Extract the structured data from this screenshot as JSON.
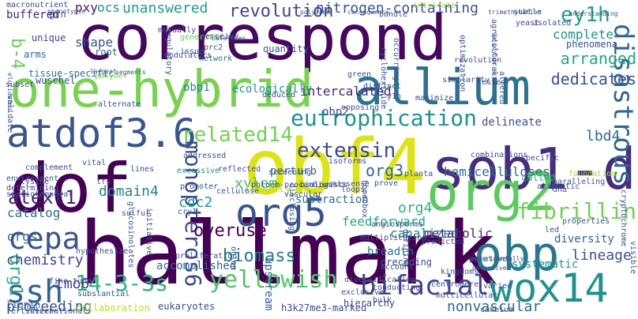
{
  "cloud": {
    "words": [
      {
        "text": "correspond",
        "color": "#46085c"
      },
      {
        "text": "hallmark",
        "color": "#440154"
      },
      {
        "text": "dof",
        "color": "#440154"
      },
      {
        "text": "obf4",
        "color": "#dde318"
      },
      {
        "text": "one-hybrid",
        "color": "#7ad151"
      },
      {
        "text": "allium",
        "color": "#2c728e"
      },
      {
        "text": "sob1-d",
        "color": "#472d7b"
      },
      {
        "text": "org2",
        "color": "#5ec962"
      },
      {
        "text": "obp",
        "color": "#2a788e"
      },
      {
        "text": "atdof3.6",
        "color": "#39568c"
      },
      {
        "text": "org5",
        "color": "#3b528b"
      },
      {
        "text": "wox14",
        "color": "#21918c"
      },
      {
        "text": "ssh",
        "color": "#33638d"
      },
      {
        "text": "cepa",
        "color": "#3b528b"
      },
      {
        "text": "bifacial",
        "color": "#414487"
      },
      {
        "text": "yellowish",
        "color": "#52c569"
      },
      {
        "text": "14-3-3s",
        "color": "#2db27d"
      },
      {
        "text": "disastrous",
        "color": "#31688e"
      },
      {
        "text": "monopteros6",
        "color": "#3e4989"
      },
      {
        "text": "fibrillin",
        "color": "#73d056"
      },
      {
        "text": "eutrophication",
        "color": "#21918c"
      },
      {
        "text": "related14",
        "color": "#73d056"
      },
      {
        "text": "revolution",
        "color": "#414487"
      },
      {
        "text": "unanswered",
        "color": "#1f9e89"
      },
      {
        "text": "nitrogen-containing",
        "color": "#3b528b"
      },
      {
        "text": "ey1h",
        "color": "#1fa088"
      },
      {
        "text": "atext1",
        "color": "#481f70"
      },
      {
        "text": "extensin",
        "color": "#3e4989"
      },
      {
        "text": "overuse",
        "color": "#440154"
      },
      {
        "text": "biomass",
        "color": "#2a788e"
      },
      {
        "text": "arranged",
        "color": "#22a785"
      },
      {
        "text": "lbd4",
        "color": "#31688e"
      },
      {
        "text": "complete",
        "color": "#21918c"
      },
      {
        "text": "dedicates",
        "color": "#3b528b"
      },
      {
        "text": "intercalated",
        "color": "#482475"
      },
      {
        "text": "org3",
        "color": "#32648e"
      },
      {
        "text": "domain4",
        "color": "#26828e"
      },
      {
        "text": "cdc2",
        "color": "#1f998a"
      },
      {
        "text": "org4",
        "color": "#2db27d"
      },
      {
        "text": "lineage",
        "color": "#3b528b"
      },
      {
        "text": "hemicelluloses",
        "color": "#2c728e"
      },
      {
        "text": "b-4",
        "color": "#6ccd5a"
      },
      {
        "text": "org1",
        "color": "#2ab07f"
      },
      {
        "text": "catalog",
        "color": "#2c728e"
      },
      {
        "text": "orgs",
        "color": "#33638d"
      },
      {
        "text": "chemistry",
        "color": "#3e4989"
      },
      {
        "text": "tmo6",
        "color": "#424086"
      },
      {
        "text": "proceeding",
        "color": "#39568c"
      },
      {
        "text": "nonvascular",
        "color": "#31688e"
      },
      {
        "text": "canalized",
        "color": "#26828e"
      },
      {
        "text": "buffered",
        "color": "#482878"
      },
      {
        "text": "pxy",
        "color": "#481a6c"
      },
      {
        "text": "ocs",
        "color": "#21918c"
      },
      {
        "text": "shape",
        "color": "#3b528b"
      },
      {
        "text": "xylem",
        "color": "#4ac16d"
      },
      {
        "text": "metabolic",
        "color": "#482878"
      },
      {
        "text": "feedforward",
        "color": "#22a785"
      },
      {
        "text": "breadth",
        "color": "#2c728e"
      },
      {
        "text": "lignin",
        "color": "#31688e"
      },
      {
        "text": "tissue-specific",
        "color": "#2c728e"
      },
      {
        "text": "ecologically",
        "color": "#21918c"
      },
      {
        "text": "obp1",
        "color": "#26828e"
      },
      {
        "text": "obp2",
        "color": "#3e4989"
      },
      {
        "text": "delineate",
        "color": "#3b528b"
      },
      {
        "text": "perturb",
        "color": "#31688e"
      },
      {
        "text": "roughly",
        "color": "#b8de29"
      },
      {
        "text": "subtraction",
        "color": "#2c728e"
      },
      {
        "text": "accomplished",
        "color": "#31688e"
      },
      {
        "text": "upstream",
        "color": "#32648e"
      },
      {
        "text": "preceding",
        "color": "#3b528b"
      },
      {
        "text": "called",
        "color": "#2ab07f"
      },
      {
        "text": "diversity",
        "color": "#32648e"
      },
      {
        "text": "systematic",
        "color": "#21918c"
      },
      {
        "text": "hierarchy",
        "color": "#3e4989"
      },
      {
        "text": "collaboration",
        "color": "#b8de29"
      },
      {
        "text": "h3k27me3-marked",
        "color": "#3e4989"
      },
      {
        "text": "eukaryotes",
        "color": "#3b528b"
      },
      {
        "text": "grn",
        "color": "#3b528b"
      },
      {
        "text": "macronutrient",
        "color": "#3e4989"
      },
      {
        "text": "unique",
        "color": "#3e4989"
      },
      {
        "text": "arms",
        "color": "#33638d"
      },
      {
        "text": "wuschel",
        "color": "#3b528b"
      },
      {
        "text": "root",
        "color": "#31688e"
      },
      {
        "text": "subset",
        "color": "#3b528b"
      },
      {
        "text": "validate",
        "color": "#3b528b"
      },
      {
        "text": "polymer",
        "color": "#7ad151"
      },
      {
        "text": "regulatory",
        "color": "#3e4989"
      },
      {
        "text": "generated",
        "color": "#6ccd5a"
      },
      {
        "text": "perceive",
        "color": "#3b528b"
      },
      {
        "text": "prc2",
        "color": "#3b528b"
      },
      {
        "text": "issue",
        "color": "#3b528b"
      },
      {
        "text": "network",
        "color": "#31688e"
      },
      {
        "text": "mutually",
        "color": "#3b528b"
      },
      {
        "text": "quantity",
        "color": "#3b528b"
      },
      {
        "text": "green",
        "color": "#3b528b"
      },
      {
        "text": "occurring",
        "color": "#3b528b"
      },
      {
        "text": "cycloheximide",
        "color": "#3b528b"
      },
      {
        "text": "bundle",
        "color": "#3b528b"
      },
      {
        "text": "intricate",
        "color": "#a8db34"
      },
      {
        "text": "subtle",
        "color": "#31688e"
      },
      {
        "text": "isolated",
        "color": "#3b528b"
      },
      {
        "text": "yeast",
        "color": "#3e4989"
      },
      {
        "text": "phenomena",
        "color": "#3b528b"
      },
      {
        "text": "agricultural",
        "color": "#3b528b"
      },
      {
        "text": "optimization",
        "color": "#3b528b"
      },
      {
        "text": "revolution",
        "color": "#3b528b"
      },
      {
        "text": "similarity",
        "color": "#3b528b"
      },
      {
        "text": "tested",
        "color": "#3b528b"
      },
      {
        "text": "altered",
        "color": "#3b528b"
      },
      {
        "text": "distinct",
        "color": "#3b528b"
      },
      {
        "text": "y1h",
        "color": "#3b528b"
      },
      {
        "text": "opposing",
        "color": "#3b528b"
      },
      {
        "text": "maximize",
        "color": "#3b528b"
      },
      {
        "text": "excessive",
        "color": "#21918c"
      },
      {
        "text": "reflected",
        "color": "#3b528b"
      },
      {
        "text": "screening",
        "color": "#3b528b"
      },
      {
        "text": "addressed",
        "color": "#3b528b"
      },
      {
        "text": "deduced",
        "color": "#3b528b"
      },
      {
        "text": "alternate",
        "color": "#3b528b"
      },
      {
        "text": "complement",
        "color": "#3b528b"
      },
      {
        "text": "environment",
        "color": "#3b528b"
      },
      {
        "text": "determining",
        "color": "#3b528b"
      },
      {
        "text": "spatiotemporal",
        "color": "#3b528b"
      },
      {
        "text": "lysine",
        "color": "#3b528b"
      },
      {
        "text": "fertilizer",
        "color": "#3b528b"
      },
      {
        "text": "tfs",
        "color": "#3b528b"
      },
      {
        "text": "glucosinolates",
        "color": "#3b528b"
      },
      {
        "text": "initiative",
        "color": "#3b528b"
      },
      {
        "text": "sulfur",
        "color": "#3b528b"
      },
      {
        "text": "cry1",
        "color": "#3b528b"
      },
      {
        "text": "promoter",
        "color": "#3b528b"
      },
      {
        "text": "cellulose",
        "color": "#3b528b"
      },
      {
        "text": "phloem-procambium",
        "color": "#3b528b"
      },
      {
        "text": "disclosing",
        "color": "#3b528b"
      },
      {
        "text": "biologists",
        "color": "#3b528b"
      },
      {
        "text": "loops",
        "color": "#3b528b"
      },
      {
        "text": "homeobox",
        "color": "#3b528b"
      },
      {
        "text": "prove",
        "color": "#3b528b"
      },
      {
        "text": "missense",
        "color": "#3b528b"
      },
      {
        "text": "multiplication",
        "color": "#3b528b"
      },
      {
        "text": "planta",
        "color": "#3b528b"
      },
      {
        "text": "angiosperms",
        "color": "#3b528b"
      },
      {
        "text": "predicted",
        "color": "#3b528b"
      },
      {
        "text": "properties",
        "color": "#3b528b"
      },
      {
        "text": "led",
        "color": "#3b528b"
      },
      {
        "text": "foundation",
        "color": "#a8db34"
      },
      {
        "text": "paralleling",
        "color": "#3b528b"
      },
      {
        "text": "aliphatic",
        "color": "#3b528b"
      },
      {
        "text": "dna",
        "color": "#3b528b"
      },
      {
        "text": "visible",
        "color": "#3b528b"
      },
      {
        "text": "cryptochrome",
        "color": "#3b528b"
      },
      {
        "text": "diversification",
        "color": "#3b528b"
      },
      {
        "text": "exclusive",
        "color": "#3b528b"
      },
      {
        "text": "conducting",
        "color": "#3b528b"
      },
      {
        "text": "bulk",
        "color": "#3b528b"
      },
      {
        "text": "account",
        "color": "#3b528b"
      },
      {
        "text": "kingdoms",
        "color": "#3b528b"
      },
      {
        "text": "putative",
        "color": "#3b528b"
      },
      {
        "text": "centromere",
        "color": "#3b528b"
      },
      {
        "text": "multicellular",
        "color": "#3b528b"
      },
      {
        "text": "cambium",
        "color": "#3b528b"
      },
      {
        "text": "varied",
        "color": "#3b528b"
      },
      {
        "text": "defining",
        "color": "#3b528b"
      },
      {
        "text": "proliferation",
        "color": "#3b528b"
      },
      {
        "text": "onion",
        "color": "#3b528b"
      },
      {
        "text": "hypothesize",
        "color": "#3b528b"
      },
      {
        "text": "fine-tuned",
        "color": "#3b528b"
      },
      {
        "text": "substantial",
        "color": "#3b528b"
      },
      {
        "text": "international",
        "color": "#3b528b"
      },
      {
        "text": "modulators",
        "color": "#3b528b"
      },
      {
        "text": "vascular",
        "color": "#3b528b"
      },
      {
        "text": "vital",
        "color": "#3b528b"
      },
      {
        "text": "lines",
        "color": "#3b528b"
      },
      {
        "text": "isoforms",
        "color": "#3b528b"
      },
      {
        "text": "combinations",
        "color": "#3b528b"
      },
      {
        "text": "specific",
        "color": "#3b528b"
      },
      {
        "text": "phenotypic",
        "color": "#3b528b"
      },
      {
        "text": "polysomb",
        "color": "#3b528b"
      },
      {
        "text": "consequence",
        "color": "#3b528b"
      },
      {
        "text": "trimethylation",
        "color": "#3b528b"
      },
      {
        "text": "understanding",
        "color": "#3b528b"
      },
      {
        "text": "catalyzes",
        "color": "#3b528b"
      },
      {
        "text": "segments",
        "color": "#3b528b"
      },
      {
        "text": "largest",
        "color": "#3b528b"
      },
      {
        "text": "elucidates",
        "color": "#3b528b"
      },
      {
        "text": "salicylic-acid",
        "color": "#3b528b"
      },
      {
        "text": "experimentally",
        "color": "#3b528b"
      },
      {
        "text": "defensive",
        "color": "#3b528b"
      }
    ]
  }
}
